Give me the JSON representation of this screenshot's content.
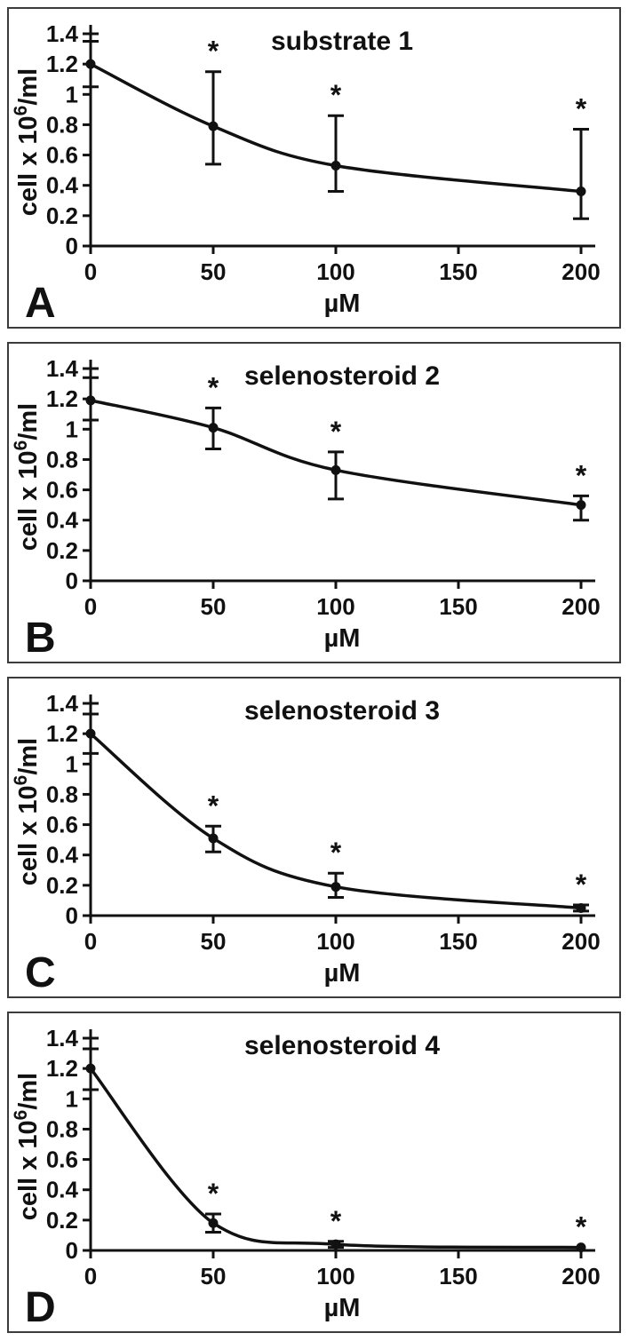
{
  "figure": {
    "background": "#ffffff",
    "line_color": "#111111",
    "panel_border_color": "#3c3c3c",
    "significance_marker": "*"
  },
  "axis": {
    "xlabel": "µM",
    "ylabel_prefix": "cell x 10",
    "ylabel_sup": "6",
    "ylabel_suffix": "/ml",
    "x_ticks": [
      0,
      50,
      100,
      150,
      200
    ],
    "x_ticklabels": [
      "0",
      "50",
      "100",
      "150",
      "200"
    ],
    "y_ticks": [
      0,
      0.2,
      0.4,
      0.6,
      0.8,
      1,
      1.2,
      1.4
    ],
    "y_ticklabels": [
      "0",
      "0.2",
      "0.4",
      "0.6",
      "0.8",
      "1",
      "1.2",
      "1.4"
    ],
    "xlim": [
      0,
      205
    ],
    "ylim": [
      0,
      1.45
    ],
    "grid": false,
    "legend": "none"
  },
  "chart_data": [
    {
      "type": "line",
      "panel_letter": "A",
      "title": "substrate 1",
      "xlabel": "µM",
      "x": [
        0,
        50,
        100,
        200
      ],
      "y": [
        1.2,
        0.79,
        0.53,
        0.36
      ],
      "err_lo": [
        1.05,
        0.54,
        0.36,
        0.18
      ],
      "err_hi": [
        1.35,
        1.15,
        0.86,
        0.77
      ],
      "significant": [
        false,
        true,
        true,
        true
      ]
    },
    {
      "type": "line",
      "panel_letter": "B",
      "title": "selenosteroid 2",
      "xlabel": "µM",
      "x": [
        0,
        50,
        100,
        200
      ],
      "y": [
        1.19,
        1.01,
        0.73,
        0.5
      ],
      "err_lo": [
        1.06,
        0.87,
        0.54,
        0.4
      ],
      "err_hi": [
        1.34,
        1.14,
        0.85,
        0.56
      ],
      "significant": [
        false,
        true,
        true,
        true
      ]
    },
    {
      "type": "line",
      "panel_letter": "C",
      "title": "selenosteroid 3",
      "xlabel": "µM",
      "x": [
        0,
        50,
        100,
        200
      ],
      "y": [
        1.2,
        0.51,
        0.19,
        0.05
      ],
      "err_lo": [
        1.07,
        0.42,
        0.12,
        0.03
      ],
      "err_hi": [
        1.33,
        0.59,
        0.28,
        0.07
      ],
      "significant": [
        false,
        true,
        true,
        true
      ]
    },
    {
      "type": "line",
      "panel_letter": "D",
      "title": "selenosteroid 4",
      "xlabel": "µM",
      "x": [
        0,
        50,
        100,
        200
      ],
      "y": [
        1.2,
        0.18,
        0.04,
        0.02
      ],
      "err_lo": [
        1.06,
        0.12,
        0.02,
        0.02
      ],
      "err_hi": [
        1.33,
        0.24,
        0.06,
        0.02
      ],
      "significant": [
        false,
        true,
        true,
        true
      ]
    }
  ]
}
